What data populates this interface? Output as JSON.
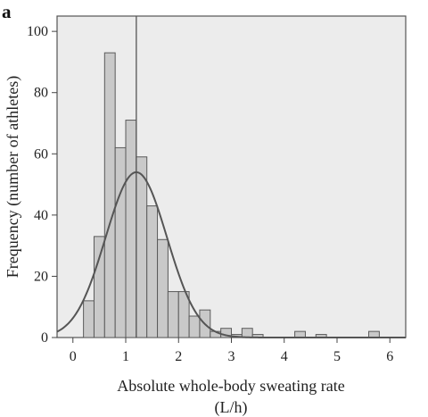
{
  "panel_label": "a",
  "chart_data": {
    "type": "bar",
    "title": "",
    "xlabel": "Absolute whole-body sweating rate",
    "xlabel_unit": "(L/h)",
    "ylabel": "Frequency (number of athletes)",
    "xlim": [
      -0.3,
      6.3
    ],
    "ylim": [
      0,
      105
    ],
    "xticks": [
      0,
      1,
      2,
      3,
      4,
      5,
      6
    ],
    "yticks": [
      0,
      20,
      40,
      60,
      80,
      100
    ],
    "bin_width": 0.2,
    "bins": [
      {
        "x0": 0.2,
        "count": 12
      },
      {
        "x0": 0.4,
        "count": 33
      },
      {
        "x0": 0.6,
        "count": 93
      },
      {
        "x0": 0.8,
        "count": 62
      },
      {
        "x0": 1.0,
        "count": 71
      },
      {
        "x0": 1.2,
        "count": 59
      },
      {
        "x0": 1.4,
        "count": 43
      },
      {
        "x0": 1.6,
        "count": 32
      },
      {
        "x0": 1.8,
        "count": 15
      },
      {
        "x0": 2.0,
        "count": 15
      },
      {
        "x0": 2.2,
        "count": 7
      },
      {
        "x0": 2.4,
        "count": 9
      },
      {
        "x0": 2.6,
        "count": 2
      },
      {
        "x0": 2.8,
        "count": 3
      },
      {
        "x0": 3.0,
        "count": 1
      },
      {
        "x0": 3.2,
        "count": 3
      },
      {
        "x0": 3.4,
        "count": 1
      },
      {
        "x0": 4.2,
        "count": 2
      },
      {
        "x0": 4.6,
        "count": 1
      },
      {
        "x0": 5.6,
        "count": 2
      }
    ],
    "reference_line_x": 1.2,
    "normal_curve": {
      "mean": 1.2,
      "sd": 0.58,
      "peak": 54
    },
    "grid": false
  }
}
